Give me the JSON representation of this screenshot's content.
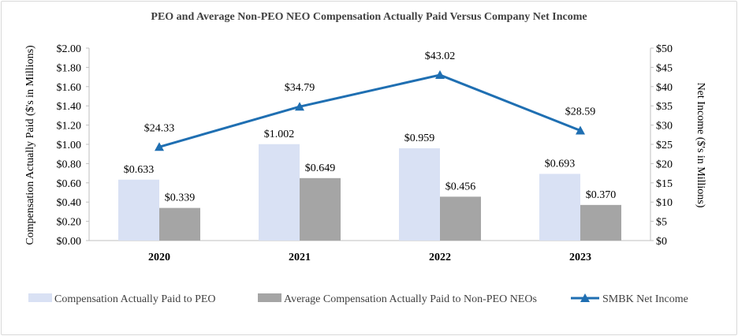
{
  "chart_data": {
    "type": "bar+line",
    "title": "PEO and Average Non-PEO NEO Compensation Actually Paid Versus Company Net Income",
    "categories": [
      "2020",
      "2021",
      "2022",
      "2023"
    ],
    "series": [
      {
        "name": "Compensation Actually Paid to PEO",
        "kind": "bar",
        "axis": "left",
        "color": "#d9e1f4",
        "values": [
          0.633,
          1.002,
          0.959,
          0.693
        ],
        "labels": [
          "$0.633",
          "$1.002",
          "$0.959",
          "$0.693"
        ]
      },
      {
        "name": "Average Compensation Actually Paid to Non-PEO NEOs",
        "kind": "bar",
        "axis": "left",
        "color": "#a5a5a5",
        "values": [
          0.339,
          0.649,
          0.456,
          0.37
        ],
        "labels": [
          "$0.339",
          "$0.649",
          "$0.456",
          "$0.370"
        ]
      },
      {
        "name": "SMBK Net Income",
        "kind": "line",
        "axis": "right",
        "color": "#1f6fb2",
        "marker": "triangle",
        "values": [
          24.33,
          34.79,
          43.02,
          28.59
        ],
        "labels": [
          "$24.33",
          "$34.79",
          "$43.02",
          "$28.59"
        ]
      }
    ],
    "y_left": {
      "label": "Compensation Actually Paid ($'s in Millions)",
      "ylim": [
        0,
        2.0
      ],
      "ticks": [
        0,
        0.2,
        0.4,
        0.6,
        0.8,
        1.0,
        1.2,
        1.4,
        1.6,
        1.8,
        2.0
      ],
      "tick_labels": [
        "$0.00",
        "$0.20",
        "$0.40",
        "$0.60",
        "$0.80",
        "$1.00",
        "$1.20",
        "$1.40",
        "$1.60",
        "$1.80",
        "$2.00"
      ]
    },
    "y_right": {
      "label": "Net Income ($'s in Millions)",
      "ylim": [
        0,
        50
      ],
      "ticks": [
        0,
        5,
        10,
        15,
        20,
        25,
        30,
        35,
        40,
        45,
        50
      ],
      "tick_labels": [
        "$0",
        "$5",
        "$10",
        "$15",
        "$20",
        "$25",
        "$30",
        "$35",
        "$40",
        "$45",
        "$50"
      ]
    },
    "grid": false,
    "legend": "bottom"
  }
}
